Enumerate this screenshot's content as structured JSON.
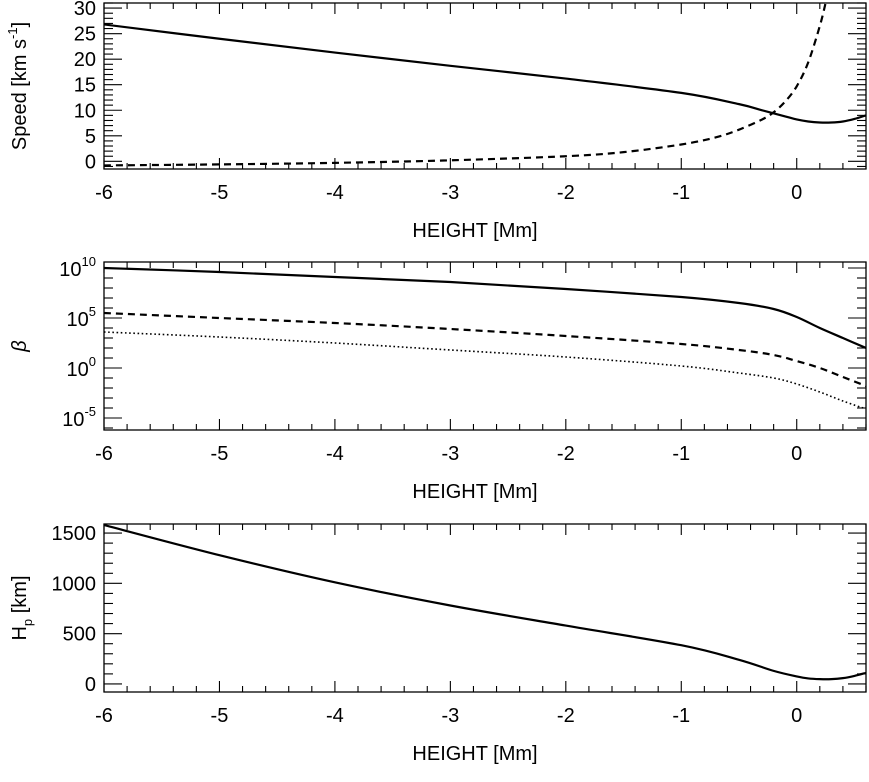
{
  "colors": {
    "line": "#000000",
    "background": "#ffffff"
  },
  "chart_data": [
    {
      "type": "line",
      "id": "speed",
      "ylabel": "Speed [km s",
      "ylabel_sup": "-1",
      "ylabel_end": "]",
      "xlabel": "HEIGHT [Mm]",
      "xlim": [
        -6,
        0.6
      ],
      "ylim": [
        -1.5,
        31
      ],
      "yscale": "linear",
      "xticks": [
        -6,
        -5,
        -4,
        -3,
        -2,
        -1,
        0
      ],
      "xtick_labels": [
        "-6",
        "-5",
        "-4",
        "-3",
        "-2",
        "-1",
        "0"
      ],
      "yticks": [
        0,
        5,
        10,
        15,
        20,
        25,
        30
      ],
      "ytick_labels": [
        "0",
        "5",
        "10",
        "15",
        "20",
        "25",
        "30"
      ],
      "series": [
        {
          "name": "solid",
          "style": "solid",
          "x": [
            -6,
            -5,
            -4,
            -3,
            -2,
            -1,
            -0.5,
            -0.3,
            -0.1,
            0,
            0.1,
            0.2,
            0.3,
            0.4,
            0.5,
            0.6
          ],
          "y": [
            26.8,
            24.0,
            21.3,
            18.7,
            16.2,
            13.4,
            11.2,
            10.0,
            8.8,
            8.2,
            7.8,
            7.6,
            7.6,
            7.8,
            8.3,
            9.0
          ]
        },
        {
          "name": "dashed",
          "style": "dashed",
          "x": [
            -6,
            -5,
            -4,
            -3,
            -2,
            -1.5,
            -1,
            -0.7,
            -0.5,
            -0.3,
            -0.2,
            -0.1,
            0,
            0.1,
            0.2,
            0.25
          ],
          "y": [
            -0.8,
            -0.6,
            -0.3,
            0.2,
            1.0,
            1.8,
            3.3,
            4.7,
            6.2,
            8.2,
            9.6,
            11.7,
            14.7,
            19.4,
            26.5,
            31
          ]
        }
      ]
    },
    {
      "type": "line",
      "id": "beta",
      "ylabel": "β",
      "xlabel": "HEIGHT [Mm]",
      "xlim": [
        -6,
        0.6
      ],
      "ylim": [
        -6.2,
        10.6
      ],
      "yscale": "log10",
      "xticks": [
        -6,
        -5,
        -4,
        -3,
        -2,
        -1,
        0
      ],
      "xtick_labels": [
        "-6",
        "-5",
        "-4",
        "-3",
        "-2",
        "-1",
        "0"
      ],
      "yticks": [
        -5,
        0,
        5,
        10
      ],
      "ytick_labels": [
        {
          "base": "10",
          "exp": "-5"
        },
        {
          "base": "10",
          "exp": "0"
        },
        {
          "base": "10",
          "exp": "5"
        },
        {
          "base": "10",
          "exp": "10"
        }
      ],
      "series": [
        {
          "name": "solid",
          "style": "solid",
          "x": [
            -6,
            -5,
            -4,
            -3,
            -2,
            -1,
            -0.5,
            -0.2,
            0,
            0.2,
            0.4,
            0.6
          ],
          "log_y": [
            10.0,
            9.6,
            9.1,
            8.6,
            7.9,
            7.1,
            6.5,
            5.9,
            5.1,
            4.0,
            3.0,
            2.0
          ],
          "y": [
            10000000000.0,
            3980000000.0,
            1260000000.0,
            398000000.0,
            79400000.0,
            12600000.0,
            3160000.0,
            794000.0,
            126000.0,
            10000.0,
            1000.0,
            100.0
          ]
        },
        {
          "name": "dashed",
          "style": "dashed",
          "x": [
            -6,
            -5,
            -4,
            -3,
            -2,
            -1,
            -0.5,
            -0.2,
            0,
            0.2,
            0.4,
            0.6
          ],
          "log_y": [
            5.5,
            5.0,
            4.5,
            3.9,
            3.2,
            2.4,
            1.8,
            1.3,
            0.7,
            0.0,
            -0.9,
            -1.8
          ],
          "y": [
            316000.0,
            100000.0,
            31600.0,
            7940.0,
            1580.0,
            251.0,
            63.1,
            20.0,
            5.0,
            1.0,
            0.126,
            0.0158
          ]
        },
        {
          "name": "dotted",
          "style": "dotted",
          "x": [
            -6,
            -5,
            -4,
            -3,
            -2,
            -1,
            -0.5,
            -0.2,
            0,
            0.2,
            0.4,
            0.6
          ],
          "log_y": [
            3.6,
            3.1,
            2.5,
            1.8,
            1.1,
            0.2,
            -0.5,
            -1.0,
            -1.6,
            -2.4,
            -3.3,
            -4.1
          ],
          "y": [
            3980.0,
            1260.0,
            316,
            63.1,
            12.6,
            1.58,
            0.316,
            0.1,
            0.0251,
            0.00398,
            0.0005,
            7.94e-05
          ]
        }
      ]
    },
    {
      "type": "line",
      "id": "hp",
      "ylabel": "H",
      "ylabel_sub": "p",
      "ylabel_end": " [km]",
      "xlabel": "HEIGHT [Mm]",
      "xlim": [
        -6,
        0.6
      ],
      "ylim": [
        -80,
        1590
      ],
      "yscale": "linear",
      "xticks": [
        -6,
        -5,
        -4,
        -3,
        -2,
        -1,
        0
      ],
      "xtick_labels": [
        "-6",
        "-5",
        "-4",
        "-3",
        "-2",
        "-1",
        "0"
      ],
      "yticks": [
        0,
        500,
        1000,
        1500
      ],
      "ytick_labels": [
        "0",
        "500",
        "1000",
        "1500"
      ],
      "series": [
        {
          "name": "solid",
          "style": "solid",
          "x": [
            -6,
            -5,
            -4,
            -3,
            -2,
            -1,
            -0.5,
            -0.2,
            0,
            0.1,
            0.2,
            0.3,
            0.4,
            0.5,
            0.6
          ],
          "y": [
            1580,
            1280,
            1010,
            780,
            580,
            385,
            240,
            130,
            75,
            55,
            48,
            48,
            58,
            80,
            110
          ]
        }
      ]
    }
  ]
}
